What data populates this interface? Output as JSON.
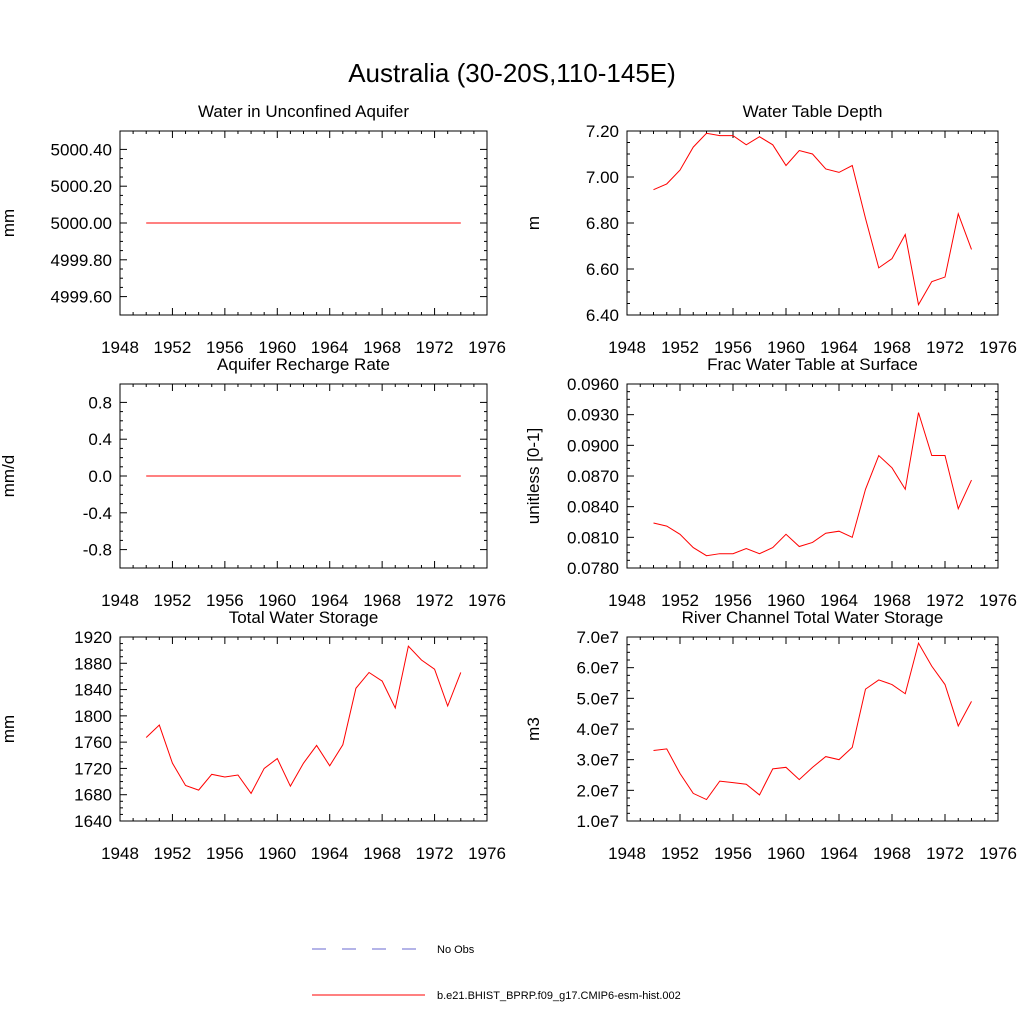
{
  "title": "Australia (30-20S,110-145E)",
  "colors": {
    "model": "#ff0000",
    "obs": "#6a6ad0",
    "axis": "#000000"
  },
  "legend": [
    {
      "label": "No Obs",
      "style": "dashed",
      "color": "#6a6ad0"
    },
    {
      "label": "b.e21.BHIST_BPRP.f09_g17.CMIP6-esm-hist.002",
      "style": "solid",
      "color": "#ff0000"
    }
  ],
  "chart_data": [
    {
      "type": "line",
      "title": "Water in Unconfined Aquifer",
      "ylabel": "mm",
      "xlim": [
        1948,
        1976
      ],
      "ylim": [
        4999.5,
        5000.5
      ],
      "xticks": [
        1948,
        1952,
        1956,
        1960,
        1964,
        1968,
        1972,
        1976
      ],
      "yticks": [
        4999.6,
        4999.8,
        5000.0,
        5000.2,
        5000.4
      ],
      "ytick_labels": [
        "4999.60",
        "4999.80",
        "5000.00",
        "5000.20",
        "5000.40"
      ],
      "x": [
        1950,
        1951,
        1952,
        1953,
        1954,
        1955,
        1956,
        1957,
        1958,
        1959,
        1960,
        1961,
        1962,
        1963,
        1964,
        1965,
        1966,
        1967,
        1968,
        1969,
        1970,
        1971,
        1972,
        1973,
        1974
      ],
      "series": [
        {
          "values": [
            5000,
            5000,
            5000,
            5000,
            5000,
            5000,
            5000,
            5000,
            5000,
            5000,
            5000,
            5000,
            5000,
            5000,
            5000,
            5000,
            5000,
            5000,
            5000,
            5000,
            5000,
            5000,
            5000,
            5000,
            5000
          ]
        }
      ]
    },
    {
      "type": "line",
      "title": "Water Table Depth",
      "ylabel": "m",
      "xlim": [
        1948,
        1976
      ],
      "ylim": [
        6.4,
        7.2
      ],
      "xticks": [
        1948,
        1952,
        1956,
        1960,
        1964,
        1968,
        1972,
        1976
      ],
      "yticks": [
        6.4,
        6.6,
        6.8,
        7.0,
        7.2
      ],
      "ytick_labels": [
        "6.40",
        "6.60",
        "6.80",
        "7.00",
        "7.20"
      ],
      "x": [
        1950,
        1951,
        1952,
        1953,
        1954,
        1955,
        1956,
        1957,
        1958,
        1959,
        1960,
        1961,
        1962,
        1963,
        1964,
        1965,
        1966,
        1967,
        1968,
        1969,
        1970,
        1971,
        1972,
        1973,
        1974
      ],
      "series": [
        {
          "values": [
            6.945,
            6.97,
            7.03,
            7.13,
            7.19,
            7.18,
            7.18,
            7.14,
            7.175,
            7.14,
            7.05,
            7.115,
            7.1,
            7.035,
            7.02,
            7.05,
            6.82,
            6.605,
            6.645,
            6.75,
            6.445,
            6.545,
            6.565,
            6.84,
            6.685
          ]
        }
      ]
    },
    {
      "type": "line",
      "title": "Aquifer Recharge Rate",
      "ylabel": "mm/d",
      "xlim": [
        1948,
        1976
      ],
      "ylim": [
        -1.0,
        1.0
      ],
      "xticks": [
        1948,
        1952,
        1956,
        1960,
        1964,
        1968,
        1972,
        1976
      ],
      "yticks": [
        -0.8,
        -0.4,
        0.0,
        0.4,
        0.8
      ],
      "ytick_labels": [
        "-0.8",
        "-0.4",
        "0.0",
        "0.4",
        "0.8"
      ],
      "x": [
        1950,
        1951,
        1952,
        1953,
        1954,
        1955,
        1956,
        1957,
        1958,
        1959,
        1960,
        1961,
        1962,
        1963,
        1964,
        1965,
        1966,
        1967,
        1968,
        1969,
        1970,
        1971,
        1972,
        1973,
        1974
      ],
      "series": [
        {
          "values": [
            0,
            0,
            0,
            0,
            0,
            0,
            0,
            0,
            0,
            0,
            0,
            0,
            0,
            0,
            0,
            0,
            0,
            0,
            0,
            0,
            0,
            0,
            0,
            0,
            0
          ]
        }
      ]
    },
    {
      "type": "line",
      "title": "Frac Water Table at Surface",
      "ylabel": "unitless [0-1]",
      "xlim": [
        1948,
        1976
      ],
      "ylim": [
        0.078,
        0.096
      ],
      "xticks": [
        1948,
        1952,
        1956,
        1960,
        1964,
        1968,
        1972,
        1976
      ],
      "yticks": [
        0.078,
        0.081,
        0.084,
        0.087,
        0.09,
        0.093,
        0.096
      ],
      "ytick_labels": [
        "0.0780",
        "0.0810",
        "0.0840",
        "0.0870",
        "0.0900",
        "0.0930",
        "0.0960"
      ],
      "x": [
        1950,
        1951,
        1952,
        1953,
        1954,
        1955,
        1956,
        1957,
        1958,
        1959,
        1960,
        1961,
        1962,
        1963,
        1964,
        1965,
        1966,
        1967,
        1968,
        1969,
        1970,
        1971,
        1972,
        1973,
        1974
      ],
      "series": [
        {
          "values": [
            0.0824,
            0.0821,
            0.0813,
            0.08,
            0.0792,
            0.0794,
            0.0794,
            0.0799,
            0.0794,
            0.08,
            0.0813,
            0.0801,
            0.0805,
            0.0814,
            0.0816,
            0.081,
            0.0857,
            0.089,
            0.0878,
            0.0857,
            0.0932,
            0.089,
            0.089,
            0.0838,
            0.0866
          ]
        }
      ]
    },
    {
      "type": "line",
      "title": "Total Water Storage",
      "ylabel": "mm",
      "xlim": [
        1948,
        1976
      ],
      "ylim": [
        1640,
        1920
      ],
      "xticks": [
        1948,
        1952,
        1956,
        1960,
        1964,
        1968,
        1972,
        1976
      ],
      "yticks": [
        1640,
        1680,
        1720,
        1760,
        1800,
        1840,
        1880,
        1920
      ],
      "ytick_labels": [
        "1640",
        "1680",
        "1720",
        "1760",
        "1800",
        "1840",
        "1880",
        "1920"
      ],
      "x": [
        1950,
        1951,
        1952,
        1953,
        1954,
        1955,
        1956,
        1957,
        1958,
        1959,
        1960,
        1961,
        1962,
        1963,
        1964,
        1965,
        1966,
        1967,
        1968,
        1969,
        1970,
        1971,
        1972,
        1973,
        1974
      ],
      "series": [
        {
          "values": [
            1767,
            1786,
            1728,
            1694,
            1687,
            1711,
            1707,
            1710,
            1682,
            1720,
            1735,
            1693,
            1728,
            1755,
            1724,
            1756,
            1842,
            1866,
            1853,
            1812,
            1906,
            1885,
            1871,
            1815,
            1866
          ]
        }
      ]
    },
    {
      "type": "line",
      "title": "River Channel Total Water Storage",
      "ylabel": "m3",
      "xlim": [
        1948,
        1976
      ],
      "ylim": [
        10000000,
        70000000
      ],
      "xticks": [
        1948,
        1952,
        1956,
        1960,
        1964,
        1968,
        1972,
        1976
      ],
      "yticks": [
        10000000,
        20000000,
        30000000,
        40000000,
        50000000,
        60000000,
        70000000
      ],
      "ytick_labels": [
        "1.0e7",
        "2.0e7",
        "3.0e7",
        "4.0e7",
        "5.0e7",
        "6.0e7",
        "7.0e7"
      ],
      "x": [
        1950,
        1951,
        1952,
        1953,
        1954,
        1955,
        1956,
        1957,
        1958,
        1959,
        1960,
        1961,
        1962,
        1963,
        1964,
        1965,
        1966,
        1967,
        1968,
        1969,
        1970,
        1971,
        1972,
        1973,
        1974
      ],
      "series": [
        {
          "values": [
            33000000,
            33500000,
            25500000,
            19000000,
            17000000,
            23000000,
            22500000,
            22000000,
            18500000,
            27000000,
            27500000,
            23500000,
            27500000,
            31000000,
            30000000,
            34000000,
            53000000,
            56000000,
            54500000,
            51500000,
            68000000,
            60500000,
            54500000,
            41000000,
            49000000
          ]
        }
      ]
    }
  ]
}
